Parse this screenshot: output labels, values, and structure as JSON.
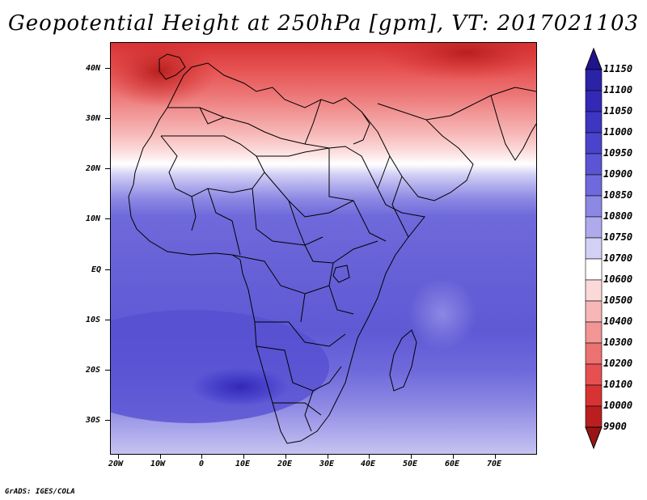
{
  "title": "Geopotential Height at 250hPa [gpm], VT: 2017021103",
  "credit": "GrADS: IGES/COLA",
  "lat_labels": [
    "40N",
    "30N",
    "20N",
    "10N",
    "EQ",
    "10S",
    "20S",
    "30S"
  ],
  "lon_labels": [
    "20W",
    "10W",
    "0",
    "10E",
    "20E",
    "30E",
    "40E",
    "50E",
    "60E",
    "70E"
  ],
  "colorbar": {
    "levels": [
      "11150",
      "11100",
      "11050",
      "11000",
      "10950",
      "10900",
      "10850",
      "10800",
      "10750",
      "10700",
      "10600",
      "10500",
      "10400",
      "10300",
      "10200",
      "10100",
      "10000",
      "9900"
    ],
    "colors": [
      "#20148c",
      "#2b23a6",
      "#3428b6",
      "#3d36c2",
      "#4a44cd",
      "#5b55d4",
      "#6f6adb",
      "#8c88e3",
      "#aeaaec",
      "#d2d0f4",
      "#ffffff",
      "#fbd9d9",
      "#f7b7b7",
      "#f19595",
      "#ec7272",
      "#e65050",
      "#d83333",
      "#b91f1f",
      "#981515"
    ]
  }
}
